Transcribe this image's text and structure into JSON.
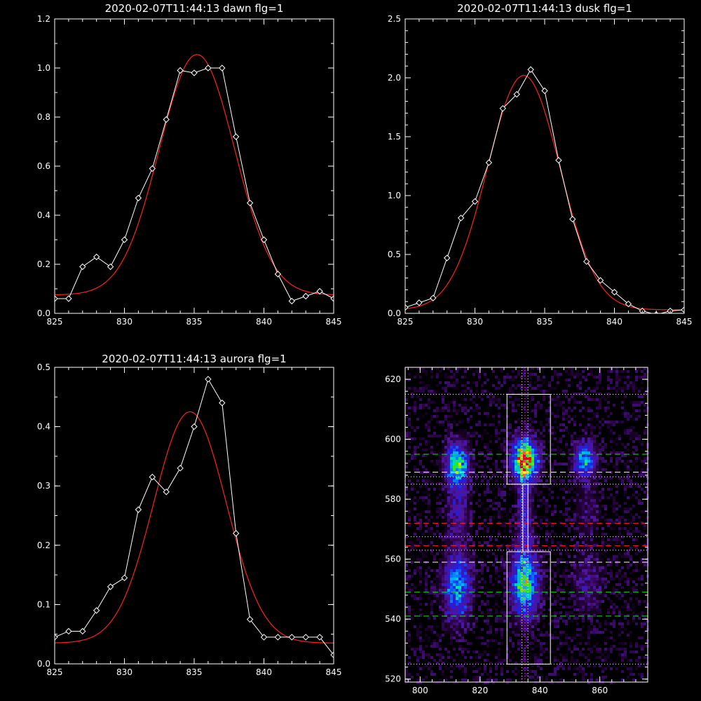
{
  "chart_data": [
    {
      "type": "line",
      "title": "2020-02-07T11:44:13 dawn flg=1",
      "xlim": [
        825,
        845
      ],
      "ylim": [
        0,
        1.2
      ],
      "xticks": [
        825,
        830,
        835,
        840,
        845
      ],
      "xtick_labels": [
        "825",
        "830",
        "835",
        "840",
        "845"
      ],
      "yticks": [
        0,
        0.2,
        0.4,
        0.6,
        0.8,
        1.0,
        1.2
      ],
      "ytick_labels": [
        "0.0",
        "0.2",
        "0.4",
        "0.6",
        "0.8",
        "1.0",
        "1.2"
      ],
      "grid": false,
      "series": [
        {
          "style": "data-diamonds",
          "color": "#ffffff",
          "x": [
            825,
            826,
            827,
            828,
            829,
            830,
            831,
            832,
            833,
            834,
            835,
            836,
            837,
            838,
            839,
            840,
            841,
            842,
            843,
            844,
            845
          ],
          "y": [
            0.06,
            0.06,
            0.19,
            0.23,
            0.19,
            0.3,
            0.47,
            0.59,
            0.79,
            0.99,
            0.98,
            1.0,
            1.0,
            0.72,
            0.45,
            0.3,
            0.16,
            0.05,
            0.07,
            0.09,
            0.06
          ]
        },
        {
          "style": "gaussian-fit",
          "color": "#ff2020",
          "amplitude": 0.98,
          "center": 835.2,
          "sigma": 2.7,
          "baseline": 0.075
        }
      ]
    },
    {
      "type": "line",
      "title": "2020-02-07T11:44:13 dusk flg=1",
      "xlim": [
        825,
        845
      ],
      "ylim": [
        0,
        2.5
      ],
      "xticks": [
        825,
        830,
        835,
        840,
        845
      ],
      "xtick_labels": [
        "825",
        "830",
        "835",
        "840",
        "845"
      ],
      "yticks": [
        0,
        0.5,
        1.0,
        1.5,
        2.0,
        2.5
      ],
      "ytick_labels": [
        "0.0",
        "0.5",
        "1.0",
        "1.5",
        "2.0",
        "2.5"
      ],
      "grid": false,
      "series": [
        {
          "style": "data-diamonds",
          "color": "#ffffff",
          "x": [
            825,
            826,
            827,
            828,
            829,
            830,
            831,
            832,
            833,
            834,
            835,
            836,
            837,
            838,
            839,
            840,
            841,
            842,
            843,
            844,
            845
          ],
          "y": [
            0.05,
            0.09,
            0.13,
            0.47,
            0.81,
            0.95,
            1.28,
            1.74,
            1.86,
            2.07,
            1.89,
            1.3,
            0.8,
            0.44,
            0.28,
            0.18,
            0.08,
            0.02,
            -0.01,
            0.02,
            0.03
          ]
        },
        {
          "style": "gaussian-fit",
          "color": "#ff2020",
          "amplitude": 1.99,
          "center": 833.5,
          "sigma": 2.6,
          "baseline": 0.03
        }
      ]
    },
    {
      "type": "line",
      "title": "2020-02-07T11:44:13 aurora flg=1",
      "xlim": [
        825,
        845
      ],
      "ylim": [
        0,
        0.5
      ],
      "xticks": [
        825,
        830,
        835,
        840,
        845
      ],
      "xtick_labels": [
        "825",
        "830",
        "835",
        "840",
        "845"
      ],
      "yticks": [
        0,
        0.1,
        0.2,
        0.3,
        0.4,
        0.5
      ],
      "ytick_labels": [
        "0.0",
        "0.1",
        "0.2",
        "0.3",
        "0.4",
        "0.5"
      ],
      "grid": false,
      "series": [
        {
          "style": "data-diamonds",
          "color": "#ffffff",
          "x": [
            825,
            826,
            827,
            828,
            829,
            830,
            831,
            832,
            833,
            834,
            835,
            836,
            837,
            838,
            839,
            840,
            841,
            842,
            843,
            844,
            845
          ],
          "y": [
            0.045,
            0.055,
            0.055,
            0.09,
            0.13,
            0.145,
            0.26,
            0.315,
            0.29,
            0.33,
            0.4,
            0.48,
            0.44,
            0.22,
            0.075,
            0.045,
            0.045,
            0.045,
            0.045,
            0.045,
            0.015
          ]
        },
        {
          "style": "gaussian-fit",
          "color": "#ff2020",
          "amplitude": 0.39,
          "center": 834.7,
          "sigma": 2.6,
          "baseline": 0.035
        }
      ]
    },
    {
      "type": "heatmap",
      "title": "",
      "xlim": [
        795,
        876
      ],
      "ylim": [
        519,
        624
      ],
      "xticks": [
        800,
        820,
        840,
        860
      ],
      "xtick_labels": [
        "800",
        "820",
        "840",
        "860"
      ],
      "yticks": [
        520,
        540,
        560,
        580,
        600,
        620
      ],
      "ytick_labels": [
        "520",
        "540",
        "560",
        "580",
        "600",
        "620"
      ],
      "colormap": "rainbow",
      "blobs": [
        {
          "x": 812.5,
          "y": 591,
          "sx": 2.5,
          "sy": 5.0,
          "amp": 0.62
        },
        {
          "x": 813,
          "y": 575,
          "sx": 2.5,
          "sy": 6.5,
          "amp": 0.18
        },
        {
          "x": 812.5,
          "y": 551,
          "sx": 3.0,
          "sy": 7.5,
          "amp": 0.48
        },
        {
          "x": 835,
          "y": 593,
          "sx": 2.7,
          "sy": 4.6,
          "amp": 1.0
        },
        {
          "x": 835,
          "y": 574,
          "sx": 1.6,
          "sy": 8.0,
          "amp": 0.28
        },
        {
          "x": 835,
          "y": 552,
          "sx": 3.0,
          "sy": 7.5,
          "amp": 0.62
        },
        {
          "x": 855,
          "y": 593,
          "sx": 2.5,
          "sy": 4.0,
          "amp": 0.48
        },
        {
          "x": 856,
          "y": 552,
          "sx": 3.2,
          "sy": 7.0,
          "amp": 0.15
        },
        {
          "x": 856,
          "y": 576,
          "sx": 3.0,
          "sy": 6.0,
          "amp": 0.1
        }
      ],
      "boxes": [
        {
          "x0": 829,
          "x1": 843.5,
          "y0": 585,
          "y1": 615
        },
        {
          "x0": 829,
          "x1": 843.5,
          "y0": 525,
          "y1": 562.5
        }
      ],
      "hlines": [
        {
          "y": 615,
          "color": "#ffffff",
          "style": "dotted"
        },
        {
          "y": 595,
          "color": "#22dd22",
          "style": "dashed"
        },
        {
          "y": 589,
          "color": "#ffffff",
          "style": "dashed"
        },
        {
          "y": 587.5,
          "color": "#ffffff",
          "style": "dotted"
        },
        {
          "y": 585,
          "color": "#ffffff",
          "style": "dotted"
        },
        {
          "y": 572,
          "color": "#ff2020",
          "style": "dashed"
        },
        {
          "y": 567.5,
          "color": "#ffffff",
          "style": "dotted"
        },
        {
          "y": 564.5,
          "color": "#ff2020",
          "style": "dashed"
        },
        {
          "y": 563,
          "color": "#ffffff",
          "style": "dotted"
        },
        {
          "y": 559,
          "color": "#ffffff",
          "style": "dashed"
        },
        {
          "y": 549,
          "color": "#22dd22",
          "style": "dashed"
        },
        {
          "y": 541,
          "color": "#22dd22",
          "style": "dashed"
        },
        {
          "y": 525,
          "color": "#ffffff",
          "style": "dotted"
        }
      ],
      "vlines": [
        {
          "x": 834,
          "color": "#ffffff",
          "style": "dotted"
        },
        {
          "x": 835,
          "color": "#ff40ff",
          "style": "dotted"
        },
        {
          "x": 836,
          "color": "#ffffff",
          "style": "dotted"
        }
      ]
    }
  ]
}
